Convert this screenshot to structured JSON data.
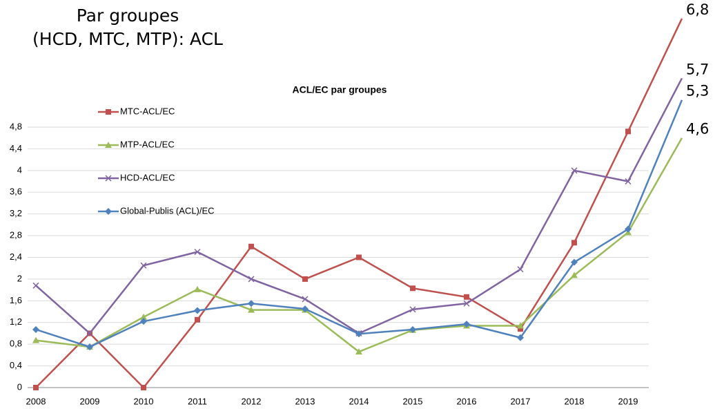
{
  "heading": [
    "Par groupes",
    "(HCD, MTC, MTP): ACL"
  ],
  "chart_data": {
    "type": "line",
    "title": "ACL/EC par groupes",
    "categories": [
      "2008",
      "2009",
      "2010",
      "2011",
      "2012",
      "2013",
      "2014",
      "2015",
      "2016",
      "2017",
      "2018",
      "2019",
      null
    ],
    "series": [
      {
        "name": "MTC-ACL/EC",
        "color": "#c0504d",
        "marker": "square",
        "values": [
          0,
          1.0,
          0,
          1.25,
          2.6,
          2.0,
          2.4,
          1.83,
          1.67,
          1.08,
          2.67,
          4.72,
          6.8
        ],
        "value_labels": [
          null,
          null,
          null,
          null,
          null,
          null,
          null,
          null,
          null,
          null,
          null,
          null,
          "6,8"
        ]
      },
      {
        "name": "MTP-ACL/EC",
        "color": "#9bbb59",
        "marker": "triangle",
        "values": [
          0.87,
          0.75,
          1.3,
          1.81,
          1.43,
          1.43,
          0.66,
          1.06,
          1.14,
          1.14,
          2.07,
          2.86,
          4.6
        ],
        "value_labels": [
          null,
          null,
          null,
          null,
          null,
          null,
          null,
          null,
          null,
          null,
          null,
          null,
          "4,6"
        ]
      },
      {
        "name": "HCD-ACL/EC",
        "color": "#8064a2",
        "marker": "x",
        "values": [
          1.88,
          1.0,
          2.25,
          2.5,
          2.0,
          1.63,
          1.0,
          1.44,
          1.55,
          2.18,
          4.0,
          3.8,
          5.7
        ],
        "value_labels": [
          null,
          null,
          null,
          null,
          null,
          null,
          null,
          null,
          null,
          null,
          null,
          null,
          "5,7"
        ]
      },
      {
        "name": "Global-Publis (ACL)/EC",
        "color": "#4f81bd",
        "marker": "diamond",
        "values": [
          1.07,
          0.75,
          1.22,
          1.42,
          1.55,
          1.45,
          0.99,
          1.07,
          1.17,
          0.92,
          2.31,
          2.92,
          5.3
        ],
        "value_labels": [
          null,
          null,
          null,
          null,
          null,
          null,
          null,
          null,
          null,
          null,
          null,
          null,
          "5,3"
        ]
      }
    ],
    "ylim": [
      0,
      4.8
    ],
    "yticks": [
      0,
      {
        "value": 0.4,
        "label": "0,4"
      },
      {
        "value": 0.8,
        "label": "0,8"
      },
      {
        "value": 1.2,
        "label": "1,2"
      },
      {
        "value": 1.6,
        "label": "1,6"
      },
      2,
      {
        "value": 2.4,
        "label": "2,4"
      },
      {
        "value": 2.8,
        "label": "2,8"
      },
      {
        "value": 3.2,
        "label": "3,2"
      },
      {
        "value": 3.6,
        "label": "3,6"
      },
      4,
      {
        "value": 4.4,
        "label": "4,4"
      },
      {
        "value": 4.8,
        "label": "4,8"
      }
    ],
    "grid": true,
    "legend": "upper left"
  }
}
